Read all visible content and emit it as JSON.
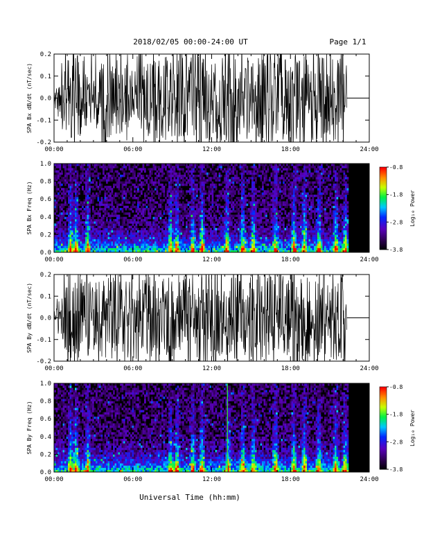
{
  "header": {
    "date_range": "2018/02/05  00:00-24:00 UT",
    "page": "Page 1/1"
  },
  "footer": {
    "xlabel": "Universal Time (hh:mm)"
  },
  "colorbar_label": "Log₁₀ Power",
  "chart_data": [
    {
      "type": "line",
      "ylabel": "SPA Bx dB/dt (nT/sec)",
      "xlim_hours": [
        0,
        24
      ],
      "x_tick_labels": [
        "00:00",
        "06:00",
        "12:00",
        "18:00",
        "24:00"
      ],
      "ylim": [
        -0.2,
        0.2
      ],
      "y_tick_labels": [
        "0.2",
        "0.1",
        "0.0",
        "-0.1",
        "-0.2"
      ],
      "data_end_hours": 22.3,
      "envelope": {
        "t_hours": [
          0,
          0.5,
          1,
          1.5,
          2,
          2.5,
          3,
          3.5,
          4,
          5,
          6,
          7,
          8,
          9,
          10,
          11,
          12,
          13,
          14,
          15,
          16,
          17,
          18,
          19,
          20,
          21,
          22,
          22.3
        ],
        "max_abs": [
          0.03,
          0.08,
          0.2,
          0.2,
          0.2,
          0.2,
          0.12,
          0.16,
          0.2,
          0.17,
          0.14,
          0.17,
          0.2,
          0.18,
          0.2,
          0.2,
          0.2,
          0.2,
          0.2,
          0.2,
          0.2,
          0.2,
          0.2,
          0.2,
          0.2,
          0.2,
          0.2,
          0.12
        ]
      },
      "after_end_value": 0.0
    },
    {
      "type": "heatmap",
      "ylabel": "SPA Bx Freq (Hz)",
      "xlim_hours": [
        0,
        24
      ],
      "x_tick_labels": [
        "00:00",
        "06:00",
        "12:00",
        "18:00",
        "24:00"
      ],
      "ylim": [
        0,
        1
      ],
      "y_tick_labels": [
        "1.0",
        "0.8",
        "0.6",
        "0.4",
        "0.2",
        "0.0"
      ],
      "colorbar_range": [
        -3.8,
        -0.8
      ],
      "colorbar_ticks": [
        "-0.8",
        "-1.8",
        "-2.8",
        "-3.8"
      ],
      "data_end_hours": 22.3,
      "bright_bursts_hours": [
        1.2,
        1.6,
        2.5,
        8.8,
        9.3,
        10.5,
        11.2,
        13.1,
        14.3,
        15.1,
        16.8,
        18.2,
        19.0,
        20.1,
        21.4,
        22.1
      ]
    },
    {
      "type": "line",
      "ylabel": "SPA By dB/dt (nT/sec)",
      "xlim_hours": [
        0,
        24
      ],
      "x_tick_labels": [
        "00:00",
        "06:00",
        "12:00",
        "18:00",
        "24:00"
      ],
      "ylim": [
        -0.2,
        0.2
      ],
      "y_tick_labels": [
        "0.2",
        "0.1",
        "0.0",
        "-0.1",
        "-0.2"
      ],
      "data_end_hours": 22.3,
      "envelope": {
        "t_hours": [
          0,
          0.5,
          1,
          1.5,
          2,
          2.5,
          3,
          3.5,
          4,
          5,
          6,
          7,
          8,
          9,
          10,
          11,
          12,
          13,
          14,
          15,
          16,
          17,
          18,
          19,
          20,
          21,
          22,
          22.3
        ],
        "max_abs": [
          0.03,
          0.1,
          0.2,
          0.2,
          0.2,
          0.2,
          0.15,
          0.18,
          0.2,
          0.18,
          0.17,
          0.18,
          0.2,
          0.2,
          0.2,
          0.2,
          0.2,
          0.2,
          0.2,
          0.2,
          0.2,
          0.2,
          0.2,
          0.2,
          0.2,
          0.2,
          0.2,
          0.12
        ]
      },
      "after_end_value": 0.0
    },
    {
      "type": "heatmap",
      "ylabel": "SPA By Freq (Hz)",
      "xlim_hours": [
        0,
        24
      ],
      "x_tick_labels": [
        "00:00",
        "06:00",
        "12:00",
        "18:00",
        "24:00"
      ],
      "ylim": [
        0,
        1
      ],
      "y_tick_labels": [
        "1.0",
        "0.8",
        "0.6",
        "0.4",
        "0.2",
        "0.0"
      ],
      "colorbar_range": [
        -3.8,
        -0.8
      ],
      "colorbar_ticks": [
        "-0.8",
        "-1.8",
        "-2.8",
        "-3.8"
      ],
      "data_end_hours": 22.3,
      "bright_bursts_hours": [
        1.2,
        1.6,
        2.5,
        8.8,
        9.3,
        10.5,
        11.2,
        13.2,
        14.3,
        15.1,
        16.8,
        18.2,
        19.0,
        20.1,
        21.4,
        22.1
      ]
    }
  ]
}
